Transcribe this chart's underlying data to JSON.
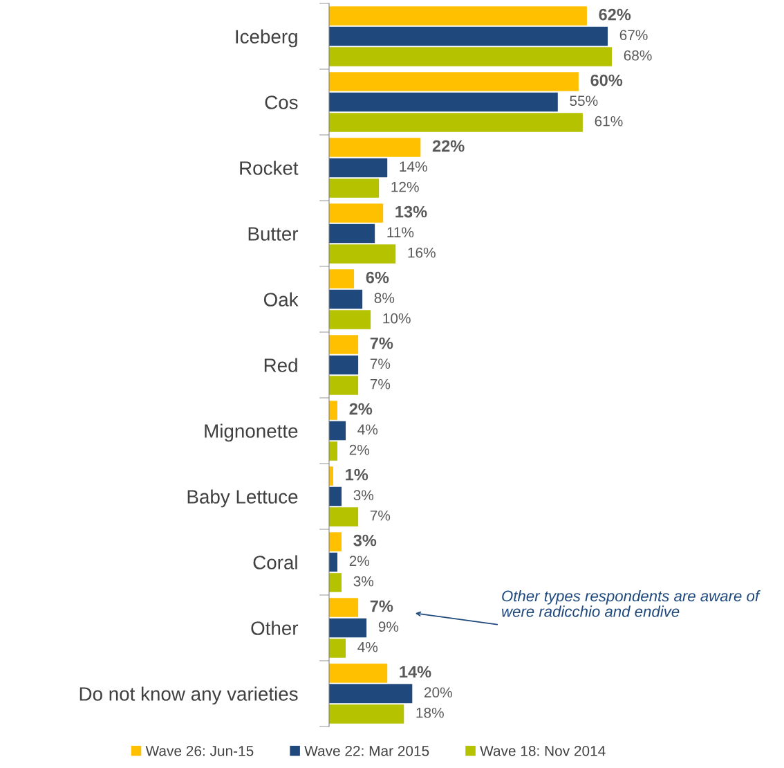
{
  "chart_data": {
    "type": "bar",
    "orientation": "horizontal",
    "legend": "bottom",
    "grid": false,
    "categories": [
      "Iceberg",
      "Cos",
      "Rocket",
      "Butter",
      "Oak",
      "Red",
      "Mignonette",
      "Baby Lettuce",
      "Coral",
      "Other",
      "Do not know any varieties"
    ],
    "series": [
      {
        "name": "Wave 26: Jun-15",
        "color": "#ffc000",
        "values": [
          62,
          60,
          22,
          13,
          6,
          7,
          2,
          1,
          3,
          7,
          14
        ],
        "value_labels": [
          "62%",
          "60%",
          "22%",
          "13%",
          "6%",
          "7%",
          "2%",
          "1%",
          "3%",
          "7%",
          "14%"
        ]
      },
      {
        "name": "Wave 22: Mar 2015",
        "color": "#1f497d",
        "values": [
          67,
          55,
          14,
          11,
          8,
          7,
          4,
          3,
          2,
          9,
          20
        ],
        "value_labels": [
          "67%",
          "55%",
          "14%",
          "11%",
          "8%",
          "7%",
          "4%",
          "3%",
          "2%",
          "9%",
          "20%"
        ]
      },
      {
        "name": "Wave 18: Nov 2014",
        "color": "#b5c200",
        "values": [
          68,
          61,
          12,
          16,
          10,
          7,
          2,
          7,
          3,
          4,
          18
        ],
        "value_labels": [
          "68%",
          "61%",
          "12%",
          "16%",
          "10%",
          "7%",
          "2%",
          "7%",
          "3%",
          "4%",
          "18%"
        ]
      }
    ],
    "annotations": [
      "Other types respondents are aware of were radicchio and endive"
    ]
  }
}
